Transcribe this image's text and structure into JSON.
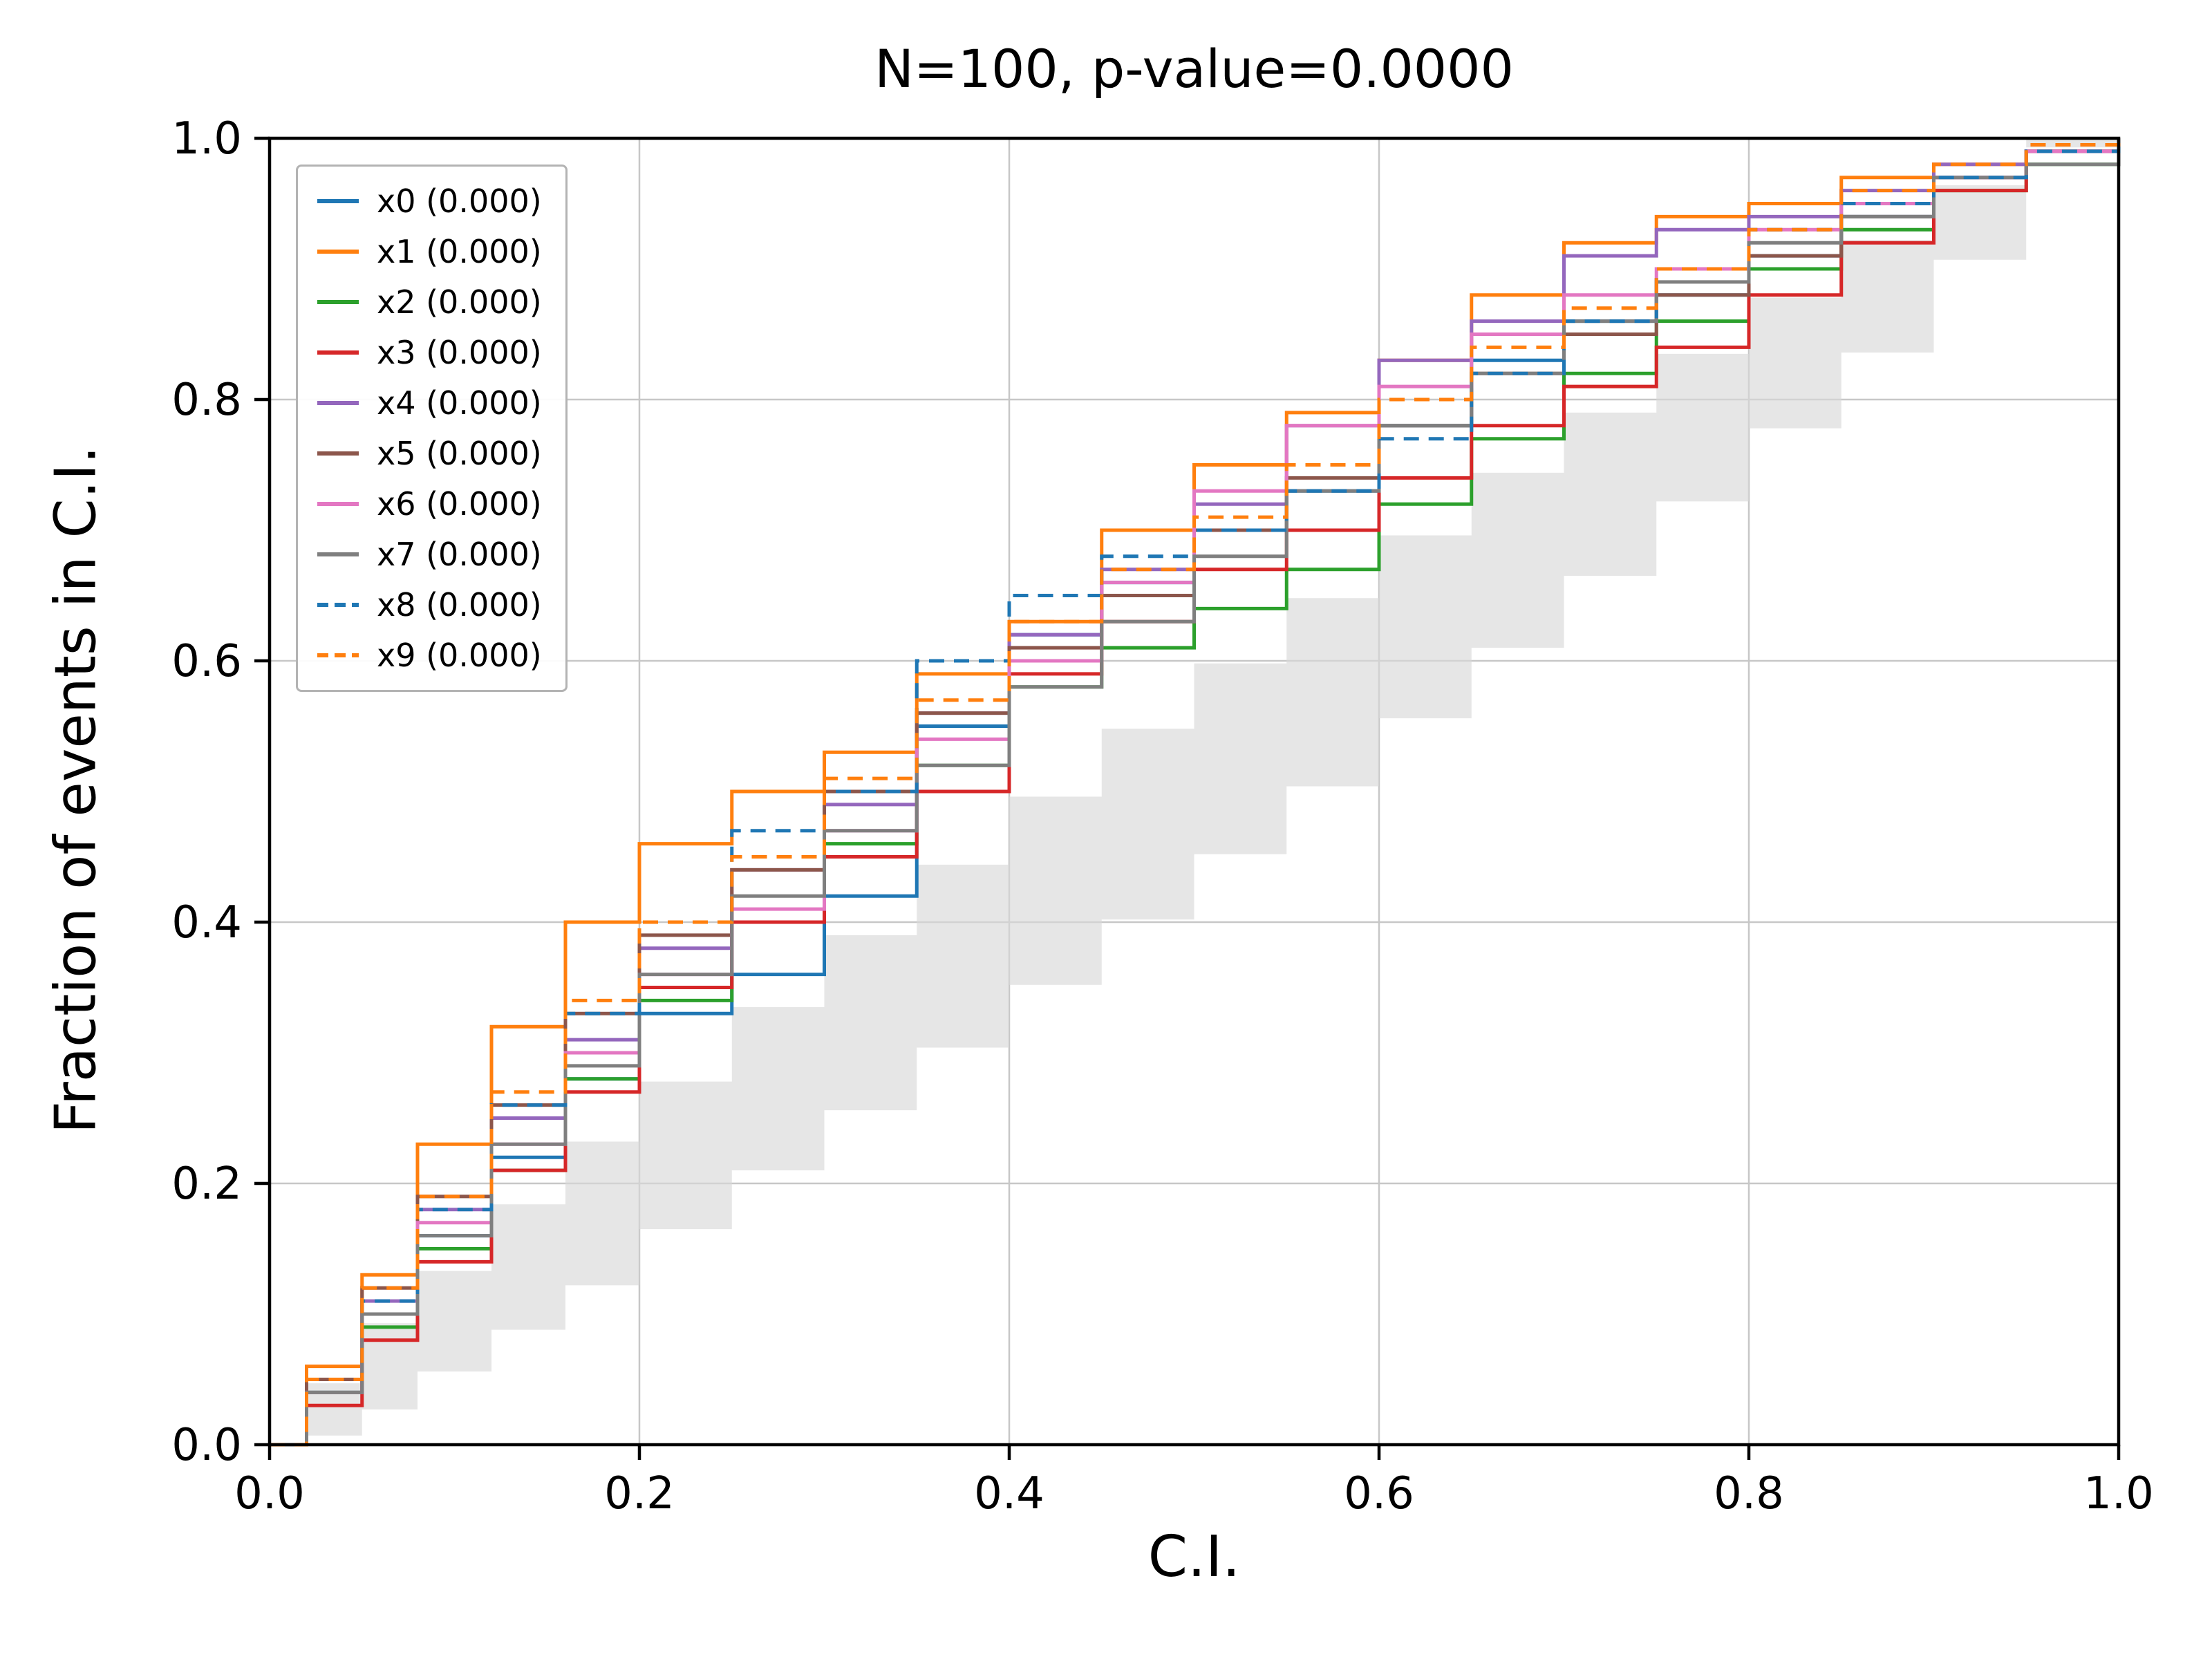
{
  "chart_data": {
    "type": "line",
    "subtype": "ecdf-step-calibration",
    "title": "N=100, p-value=0.0000",
    "xlabel": "C.I.",
    "ylabel": "Fraction of events in C.I.",
    "xlim": [
      0.0,
      1.0
    ],
    "ylim": [
      0.0,
      1.0
    ],
    "xticks": [
      0.0,
      0.2,
      0.4,
      0.6,
      0.8,
      1.0
    ],
    "yticks": [
      0.0,
      0.2,
      0.4,
      0.6,
      0.8,
      1.0
    ],
    "grid": true,
    "grid_color": "#c7c7c7",
    "legend_position": "upper left",
    "band": {
      "name": "confidence-band",
      "color": "#d9d9d9",
      "opacity": 0.65,
      "lower": [
        0,
        0,
        0.007,
        0.027,
        0.056,
        0.088,
        0.122,
        0.165,
        0.21,
        0.256,
        0.304,
        0.352,
        0.402,
        0.452,
        0.504,
        0.556,
        0.61,
        0.665,
        0.722,
        0.778,
        0.836,
        0.907,
        1.0
      ],
      "upper": [
        0,
        0.047,
        0.093,
        0.133,
        0.184,
        0.232,
        0.278,
        0.335,
        0.39,
        0.444,
        0.496,
        0.548,
        0.598,
        0.648,
        0.696,
        0.744,
        0.79,
        0.835,
        0.878,
        0.922,
        0.964,
        0.993,
        1.0
      ]
    },
    "x": [
      0,
      0.02,
      0.05,
      0.08,
      0.12,
      0.16,
      0.2,
      0.25,
      0.3,
      0.35,
      0.4,
      0.45,
      0.5,
      0.55,
      0.6,
      0.65,
      0.7,
      0.75,
      0.8,
      0.85,
      0.9,
      0.95,
      1.0
    ],
    "series": [
      {
        "name": "x0",
        "label": "x0 (0.000)",
        "color": "#1f77b4",
        "dashed": false,
        "values": [
          0,
          0.04,
          0.1,
          0.16,
          0.22,
          0.28,
          0.33,
          0.36,
          0.42,
          0.55,
          0.62,
          0.66,
          0.7,
          0.73,
          0.78,
          0.83,
          0.86,
          0.88,
          0.91,
          0.94,
          0.97,
          0.99,
          1.0
        ]
      },
      {
        "name": "x1",
        "label": "x1 (0.000)",
        "color": "#ff7f0e",
        "dashed": false,
        "values": [
          0,
          0.06,
          0.13,
          0.23,
          0.32,
          0.4,
          0.46,
          0.5,
          0.53,
          0.59,
          0.63,
          0.7,
          0.75,
          0.79,
          0.83,
          0.88,
          0.92,
          0.94,
          0.95,
          0.97,
          0.98,
          0.99,
          1.0
        ]
      },
      {
        "name": "x2",
        "label": "x2 (0.000)",
        "color": "#2ca02c",
        "dashed": false,
        "values": [
          0,
          0.04,
          0.09,
          0.15,
          0.21,
          0.28,
          0.34,
          0.4,
          0.46,
          0.52,
          0.58,
          0.61,
          0.64,
          0.67,
          0.72,
          0.77,
          0.82,
          0.86,
          0.9,
          0.93,
          0.96,
          0.98,
          1.0
        ]
      },
      {
        "name": "x3",
        "label": "x3 (0.000)",
        "color": "#d62728",
        "dashed": false,
        "values": [
          0,
          0.03,
          0.08,
          0.14,
          0.21,
          0.27,
          0.35,
          0.4,
          0.45,
          0.5,
          0.59,
          0.63,
          0.67,
          0.7,
          0.74,
          0.78,
          0.81,
          0.84,
          0.88,
          0.92,
          0.96,
          0.99,
          1.0
        ]
      },
      {
        "name": "x4",
        "label": "x4 (0.000)",
        "color": "#9467bd",
        "dashed": false,
        "values": [
          0,
          0.05,
          0.11,
          0.18,
          0.25,
          0.31,
          0.38,
          0.44,
          0.49,
          0.56,
          0.62,
          0.67,
          0.72,
          0.78,
          0.83,
          0.86,
          0.91,
          0.93,
          0.94,
          0.96,
          0.98,
          0.99,
          1.0
        ]
      },
      {
        "name": "x5",
        "label": "x5 (0.000)",
        "color": "#8c564b",
        "dashed": false,
        "values": [
          0,
          0.05,
          0.12,
          0.19,
          0.26,
          0.33,
          0.39,
          0.44,
          0.5,
          0.56,
          0.61,
          0.65,
          0.7,
          0.74,
          0.78,
          0.82,
          0.85,
          0.88,
          0.91,
          0.94,
          0.97,
          0.99,
          1.0
        ]
      },
      {
        "name": "x6",
        "label": "x6 (0.000)",
        "color": "#e377c2",
        "dashed": false,
        "values": [
          0,
          0.04,
          0.1,
          0.17,
          0.23,
          0.3,
          0.36,
          0.41,
          0.47,
          0.54,
          0.6,
          0.66,
          0.73,
          0.78,
          0.81,
          0.85,
          0.88,
          0.9,
          0.93,
          0.95,
          0.97,
          0.99,
          1.0
        ]
      },
      {
        "name": "x7",
        "label": "x7 (0.000)",
        "color": "#7f7f7f",
        "dashed": false,
        "values": [
          0,
          0.04,
          0.1,
          0.16,
          0.23,
          0.29,
          0.36,
          0.42,
          0.47,
          0.52,
          0.58,
          0.63,
          0.68,
          0.73,
          0.78,
          0.82,
          0.86,
          0.89,
          0.92,
          0.94,
          0.97,
          0.98,
          1.0
        ]
      },
      {
        "name": "x8",
        "label": "x8 (0.000)",
        "color": "#1f77b4",
        "dashed": true,
        "values": [
          0,
          0.05,
          0.11,
          0.18,
          0.26,
          0.33,
          0.4,
          0.47,
          0.5,
          0.6,
          0.65,
          0.68,
          0.7,
          0.73,
          0.77,
          0.82,
          0.86,
          0.9,
          0.93,
          0.95,
          0.97,
          0.99,
          1.0
        ]
      },
      {
        "name": "x9",
        "label": "x9 (0.000)",
        "color": "#ff7f0e",
        "dashed": true,
        "values": [
          0,
          0.05,
          0.12,
          0.19,
          0.27,
          0.34,
          0.4,
          0.45,
          0.51,
          0.57,
          0.63,
          0.67,
          0.71,
          0.75,
          0.8,
          0.84,
          0.87,
          0.9,
          0.93,
          0.96,
          0.98,
          0.995,
          1.0
        ]
      }
    ]
  }
}
